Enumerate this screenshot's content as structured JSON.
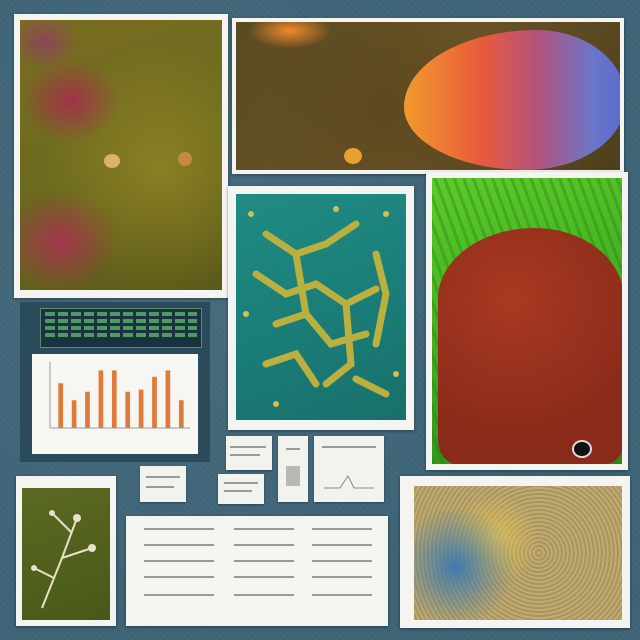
{
  "scene": "collage",
  "panels": [
    {
      "name": "olive-microscopy",
      "colors": [
        "#6b6a1e",
        "#b32e55"
      ]
    },
    {
      "name": "orange-blue-blob",
      "colors": [
        "#f29a2e",
        "#6a76c8"
      ]
    },
    {
      "name": "teal-branches",
      "colors": [
        "#1f8c84",
        "#b9b040"
      ]
    },
    {
      "name": "green-red-shape",
      "colors": [
        "#4cbc25",
        "#8a2a1a"
      ]
    },
    {
      "name": "plant-specimen",
      "colors": [
        "#485818",
        "#e8e0c8"
      ]
    },
    {
      "name": "blue-coral",
      "colors": [
        "#3a78b4",
        "#b09a68"
      ]
    }
  ],
  "chart_data": {
    "type": "bar",
    "values": [
      21,
      13,
      17,
      27,
      27,
      17,
      18,
      24,
      27,
      13
    ],
    "ylim": [
      0,
      30
    ]
  }
}
